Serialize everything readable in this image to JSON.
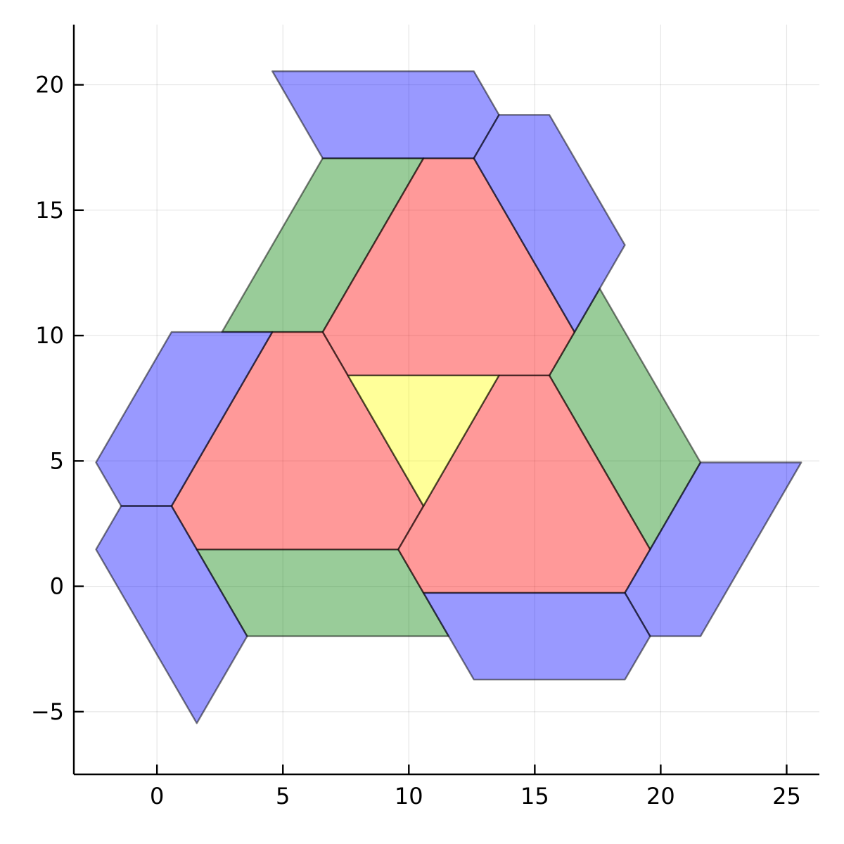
{
  "chart_data": {
    "type": "polygon-tiling",
    "title": "",
    "xlabel": "",
    "ylabel": "",
    "xlim": [
      -3.3,
      26.3
    ],
    "ylim": [
      -7.5,
      22.4
    ],
    "xticks": [
      0,
      5,
      10,
      15,
      20,
      25
    ],
    "yticks": [
      -5,
      0,
      5,
      10,
      15,
      20
    ],
    "xtick_labels": [
      "0",
      "5",
      "10",
      "15",
      "20",
      "25"
    ],
    "ytick_labels": [
      "−5",
      "0",
      "5",
      "10",
      "15",
      "20"
    ],
    "grid": true,
    "legend": "none",
    "fill_opacity": 0.4,
    "colors": {
      "red": "#ff0000",
      "green": "#008000",
      "blue": "#0000ff",
      "yellow": "#ffff00"
    },
    "polygons": [
      {
        "color": "green",
        "points": [
          [
            6.58,
            17.07
          ],
          [
            10.58,
            17.07
          ],
          [
            6.58,
            10.14
          ],
          [
            2.58,
            10.14
          ]
        ]
      },
      {
        "color": "green",
        "points": [
          [
            17.58,
            11.87
          ],
          [
            21.58,
            4.94
          ],
          [
            19.58,
            1.47
          ],
          [
            15.58,
            8.41
          ]
        ]
      },
      {
        "color": "green",
        "points": [
          [
            1.58,
            1.47
          ],
          [
            9.58,
            1.47
          ],
          [
            11.58,
            -1.99
          ],
          [
            3.58,
            -1.99
          ]
        ]
      },
      {
        "color": "red",
        "points": [
          [
            10.58,
            17.07
          ],
          [
            12.58,
            17.07
          ],
          [
            16.58,
            10.14
          ],
          [
            15.58,
            8.41
          ],
          [
            7.58,
            8.41
          ],
          [
            6.58,
            10.14
          ]
        ]
      },
      {
        "color": "red",
        "points": [
          [
            4.58,
            10.14
          ],
          [
            6.58,
            10.14
          ],
          [
            7.58,
            8.41
          ],
          [
            10.58,
            3.2
          ],
          [
            9.58,
            1.47
          ],
          [
            1.58,
            1.47
          ],
          [
            0.58,
            3.2
          ]
        ]
      },
      {
        "color": "red",
        "points": [
          [
            13.58,
            8.41
          ],
          [
            15.58,
            8.41
          ],
          [
            19.58,
            1.47
          ],
          [
            18.58,
            -0.26
          ],
          [
            10.58,
            -0.26
          ],
          [
            9.58,
            1.47
          ],
          [
            10.58,
            3.2
          ]
        ]
      },
      {
        "color": "yellow",
        "points": [
          [
            7.58,
            8.41
          ],
          [
            13.58,
            8.41
          ],
          [
            10.58,
            3.2
          ]
        ]
      },
      {
        "color": "blue",
        "points": [
          [
            4.58,
            20.54
          ],
          [
            12.58,
            20.54
          ],
          [
            13.58,
            18.8
          ],
          [
            12.58,
            17.07
          ],
          [
            6.58,
            17.07
          ]
        ]
      },
      {
        "color": "blue",
        "points": [
          [
            13.58,
            18.8
          ],
          [
            15.58,
            18.8
          ],
          [
            18.58,
            13.61
          ],
          [
            16.58,
            10.14
          ],
          [
            12.58,
            17.07
          ]
        ]
      },
      {
        "color": "blue",
        "points": [
          [
            0.58,
            10.14
          ],
          [
            4.58,
            10.14
          ],
          [
            0.58,
            3.2
          ],
          [
            -1.42,
            3.2
          ],
          [
            -2.42,
            4.94
          ]
        ]
      },
      {
        "color": "blue",
        "points": [
          [
            -1.42,
            3.2
          ],
          [
            0.58,
            3.2
          ],
          [
            3.58,
            -1.99
          ],
          [
            1.58,
            -5.46
          ],
          [
            -2.42,
            1.47
          ]
        ]
      },
      {
        "color": "blue",
        "points": [
          [
            21.58,
            4.94
          ],
          [
            25.58,
            4.94
          ],
          [
            21.58,
            -1.99
          ],
          [
            19.58,
            -1.99
          ],
          [
            18.58,
            -0.26
          ]
        ]
      },
      {
        "color": "blue",
        "points": [
          [
            10.58,
            -0.26
          ],
          [
            18.58,
            -0.26
          ],
          [
            19.58,
            -1.99
          ],
          [
            18.58,
            -3.72
          ],
          [
            12.58,
            -3.72
          ]
        ]
      }
    ]
  }
}
